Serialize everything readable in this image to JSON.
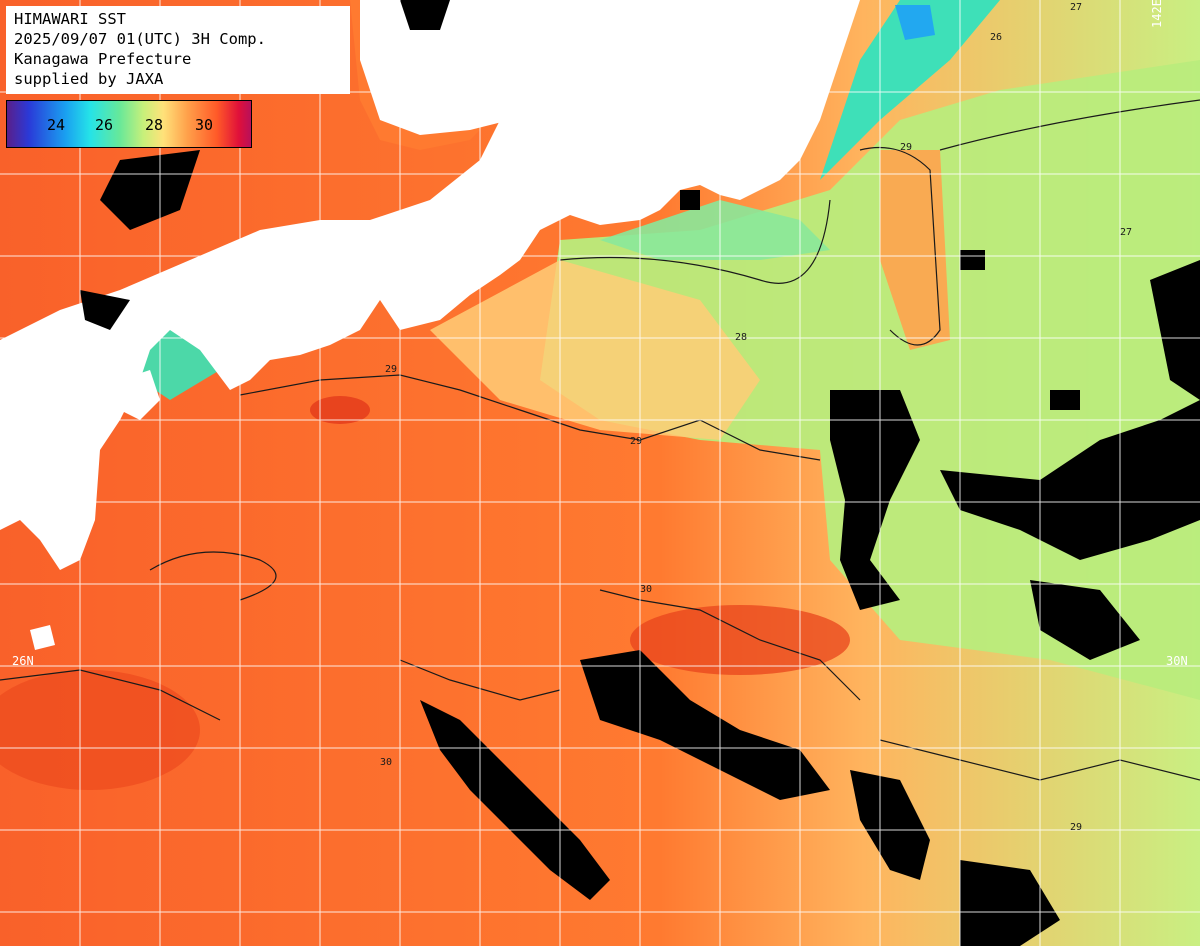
{
  "title": {
    "line1": "HIMAWARI SST",
    "line2": "2025/09/07 01(UTC) 3H Comp.",
    "line3": "Kanagawa Prefecture",
    "line4": "supplied by JAXA"
  },
  "colorbar": {
    "ticks": [
      "24",
      "26",
      "28",
      "30"
    ],
    "colors": [
      "#5a1f8a",
      "#2a3ad8",
      "#1aa0f0",
      "#25e3e8",
      "#66e89a",
      "#c8f07a",
      "#ffe27a",
      "#ffa04a",
      "#ff5a28",
      "#e0103a"
    ]
  },
  "grid_labels": {
    "lat_left": "26N",
    "lat_right": "30N",
    "lon_top": "142E"
  },
  "contour_labels": [
    "26",
    "27",
    "28",
    "29",
    "30"
  ],
  "map_colors": {
    "land": "#ffffff",
    "cloud": "#000000",
    "warm": "#ff6a22",
    "hot": "#f04a1c",
    "mild": "#ffb060",
    "cool": "#b8ec78",
    "cold": "#40e0c0",
    "grid": "#ffffff"
  }
}
